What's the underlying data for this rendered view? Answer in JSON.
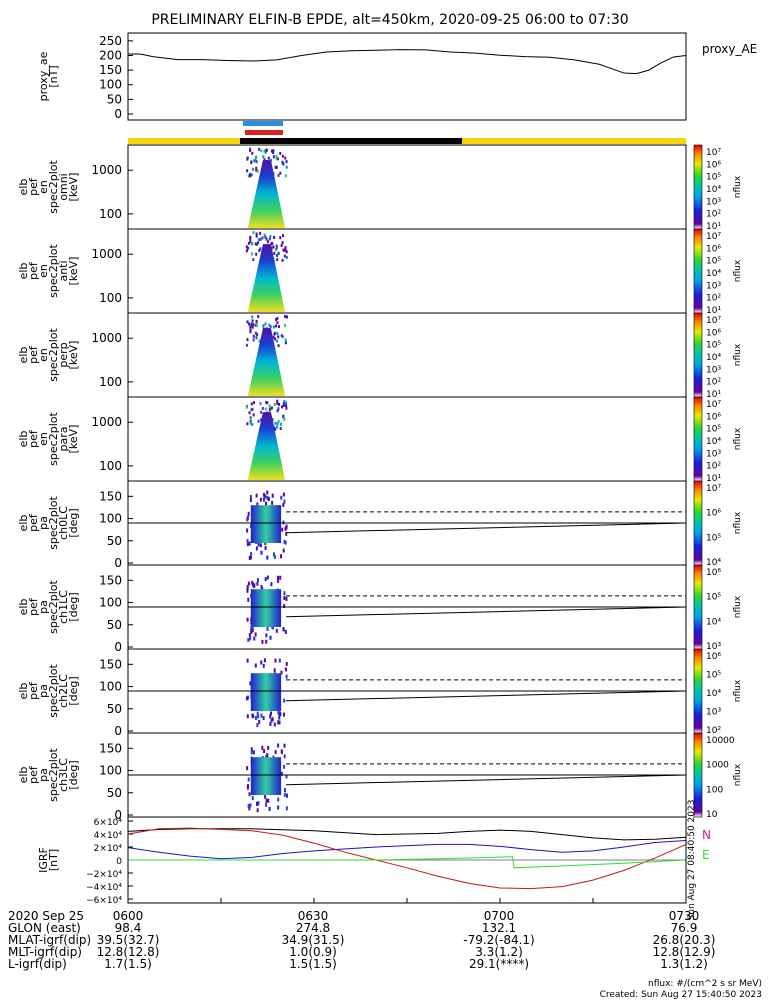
{
  "title": "PRELIMINARY ELFIN-B EPDE, alt=450km, 2020-09-25 06:00 to 07:30",
  "colors": {
    "sunlight_bar": "#f5d60a",
    "shadow_bar": "#000000",
    "ibo_blue": "#2a8fe0",
    "ibo_red": "#e02020",
    "grf_x": "#000000",
    "grf_y": "#1515c8",
    "grf_z": "#c81515",
    "grf_n": "#cc2288",
    "grf_e": "#33dd33"
  },
  "chart_data": [
    {
      "type": "line",
      "ylabel": [
        "proxy_ae",
        "[nT]"
      ],
      "legend": "proxy_AE",
      "yticks": [
        "250",
        "200",
        "150",
        "100",
        "50",
        "0"
      ],
      "ylim": [
        0,
        270
      ],
      "xlim_minutes": [
        0,
        90
      ],
      "series": [
        {
          "name": "proxy_AE",
          "x": [
            0,
            2,
            4,
            8,
            12,
            16,
            20,
            24,
            28,
            32,
            36,
            40,
            44,
            48,
            52,
            56,
            60,
            64,
            68,
            72,
            76,
            80,
            82,
            84,
            86,
            88,
            90
          ],
          "y": [
            205,
            205,
            196,
            186,
            186,
            183,
            181,
            185,
            200,
            212,
            216,
            218,
            220,
            219,
            212,
            208,
            201,
            196,
            194,
            185,
            170,
            140,
            138,
            150,
            175,
            195,
            200
          ]
        }
      ]
    },
    {
      "type": "heatmap",
      "ylabel": [
        "elb",
        "pef",
        "en",
        "spec2plot",
        "omni",
        "[keV]"
      ],
      "yticks": [
        "1000",
        "100"
      ],
      "colorbar_ticks": [
        "10⁷",
        "10⁶",
        "10⁵",
        "10⁴",
        "10³",
        "10²",
        "10¹"
      ],
      "colorbar_label": "nflux",
      "active_minutes": [
        19.0,
        25.5
      ]
    },
    {
      "type": "heatmap",
      "ylabel": [
        "elb",
        "pef",
        "en",
        "spec2plot",
        "anti",
        "[keV]"
      ],
      "yticks": [
        "1000",
        "100"
      ],
      "colorbar_ticks": [
        "10⁷",
        "10⁶",
        "10⁵",
        "10⁴",
        "10³",
        "10²",
        "10¹"
      ],
      "colorbar_label": "nflux",
      "active_minutes": [
        19.0,
        25.5
      ]
    },
    {
      "type": "heatmap",
      "ylabel": [
        "elb",
        "pef",
        "en",
        "spec2plot",
        "perp",
        "[keV]"
      ],
      "yticks": [
        "1000",
        "100"
      ],
      "colorbar_ticks": [
        "10⁷",
        "10⁶",
        "10⁵",
        "10⁴",
        "10³",
        "10²",
        "10¹"
      ],
      "colorbar_label": "nflux",
      "active_minutes": [
        19.0,
        25.5
      ]
    },
    {
      "type": "heatmap",
      "ylabel": [
        "elb",
        "pef",
        "en",
        "spec2plot",
        "para",
        "[keV]"
      ],
      "yticks": [
        "1000",
        "100"
      ],
      "colorbar_ticks": [
        "10⁷",
        "10⁶",
        "10⁵",
        "10⁴",
        "10³",
        "10²",
        "10¹"
      ],
      "colorbar_label": "nflux",
      "active_minutes": [
        19.0,
        25.5
      ]
    },
    {
      "type": "heatmap",
      "ylabel": [
        "elb",
        "pef",
        "pa",
        "spec2plot",
        "ch0LC",
        "[deg]"
      ],
      "yticks": [
        "150",
        "100",
        "50",
        "0"
      ],
      "colorbar_ticks": [
        "10⁷",
        "10⁶",
        "10⁵",
        "10⁴"
      ],
      "colorbar_label": "nflux",
      "active_minutes": [
        19.0,
        25.5
      ],
      "reference_lines": {
        "solid_90": 90,
        "dashed_start_deg": 115,
        "solid_start_deg": 68,
        "solid_end_deg": 90
      }
    },
    {
      "type": "heatmap",
      "ylabel": [
        "elb",
        "pef",
        "pa",
        "spec2plot",
        "ch1LC",
        "[deg]"
      ],
      "yticks": [
        "150",
        "100",
        "50",
        "0"
      ],
      "colorbar_ticks": [
        "10⁶",
        "10⁵",
        "10⁴",
        "10³"
      ],
      "colorbar_label": "nflux",
      "active_minutes": [
        19.0,
        25.5
      ],
      "reference_lines": {
        "solid_90": 90,
        "dashed_start_deg": 115,
        "solid_start_deg": 68,
        "solid_end_deg": 90
      }
    },
    {
      "type": "heatmap",
      "ylabel": [
        "elb",
        "pef",
        "pa",
        "spec2plot",
        "ch2LC",
        "[deg]"
      ],
      "yticks": [
        "150",
        "100",
        "50",
        "0"
      ],
      "colorbar_ticks": [
        "10⁶",
        "10⁵",
        "10⁴",
        "10³",
        "10²"
      ],
      "colorbar_label": "nflux",
      "active_minutes": [
        19.0,
        25.5
      ],
      "reference_lines": {
        "solid_90": 90,
        "dashed_start_deg": 115,
        "solid_start_deg": 68,
        "solid_end_deg": 90
      }
    },
    {
      "type": "heatmap",
      "ylabel": [
        "elb",
        "pef",
        "pa",
        "spec2plot",
        "ch3LC",
        "[deg]"
      ],
      "yticks": [
        "150",
        "100",
        "50",
        "0"
      ],
      "colorbar_ticks": [
        "10000",
        "1000",
        "100",
        "10"
      ],
      "colorbar_label": "nflux",
      "active_minutes": [
        19.0,
        25.5
      ],
      "reference_lines": {
        "solid_90": 90,
        "dashed_start_deg": 115,
        "solid_start_deg": 68,
        "solid_end_deg": 90
      }
    },
    {
      "type": "line",
      "ylabel": [
        "IGRF",
        "[nT]"
      ],
      "yticks": [
        "6×10⁴",
        "4×10⁴",
        "2×10⁴",
        "0",
        "−2×10⁴",
        "−4×10⁴",
        "−6×10⁴"
      ],
      "ylim": [
        -60000,
        60000
      ],
      "legend_labels": [
        "N",
        "E"
      ],
      "side_note": "Sun Aug 27 08:40:50 2023",
      "series": [
        {
          "color_key": "grf_x",
          "x": [
            0,
            5,
            10,
            20,
            30,
            40,
            50,
            55,
            60,
            65,
            70,
            75,
            80,
            85,
            90
          ],
          "y": [
            44000,
            47000,
            48000,
            48000,
            45000,
            39000,
            41000,
            44000,
            46000,
            44000,
            39000,
            34000,
            31000,
            32000,
            35000
          ]
        },
        {
          "color_key": "grf_y",
          "x": [
            0,
            5,
            10,
            15,
            20,
            25,
            30,
            40,
            50,
            55,
            60,
            65,
            70,
            75,
            80,
            85,
            90
          ],
          "y": [
            19000,
            12000,
            6000,
            2000,
            4000,
            10000,
            14000,
            20000,
            24000,
            24000,
            21000,
            16000,
            12000,
            14000,
            20000,
            27000,
            30000
          ]
        },
        {
          "color_key": "grf_z",
          "x": [
            0,
            5,
            10,
            20,
            25,
            30,
            35,
            40,
            45,
            50,
            55,
            60,
            65,
            70,
            75,
            80,
            85,
            90
          ],
          "y": [
            40000,
            48000,
            49000,
            45000,
            38000,
            26000,
            12000,
            0,
            -12000,
            -25000,
            -36000,
            -43000,
            -44000,
            -41000,
            -31000,
            -16000,
            3000,
            24000
          ]
        },
        {
          "color_key": "grf_e",
          "x": [
            0,
            10,
            20,
            30,
            40,
            50,
            60,
            62,
            62.3,
            70,
            80,
            90
          ],
          "y": [
            0,
            0,
            0,
            0,
            0,
            2000,
            4500,
            5000,
            -12000,
            -9000,
            -5000,
            0
          ]
        }
      ]
    }
  ],
  "footer": {
    "rows": [
      {
        "label": "2020 Sep 25",
        "values": [
          "0600",
          "0630",
          "0700",
          "0730"
        ]
      },
      {
        "label": "GLON (east)",
        "values": [
          "98.4",
          "274.8",
          "132.1",
          "76.9"
        ]
      },
      {
        "label": "MLAT-igrf(dip)",
        "values": [
          "39.5(32.7)",
          "34.9(31.5)",
          "-79.2(-84.1)",
          "26.8(20.3)"
        ]
      },
      {
        "label": "MLT-igrf(dip)",
        "values": [
          "12.8(12.8)",
          "1.0(0.9)",
          "3.3(1.2)",
          "12.8(12.9)"
        ]
      },
      {
        "label": "L-igrf(dip)",
        "values": [
          "1.7(1.5)",
          "1.5(1.5)",
          "29.1(****)",
          "1.3(1.2)"
        ]
      }
    ],
    "units_note": "nflux: #/(cm^2 s sr MeV)",
    "created": "Created: Sun Aug 27 15:40:50 2023"
  }
}
